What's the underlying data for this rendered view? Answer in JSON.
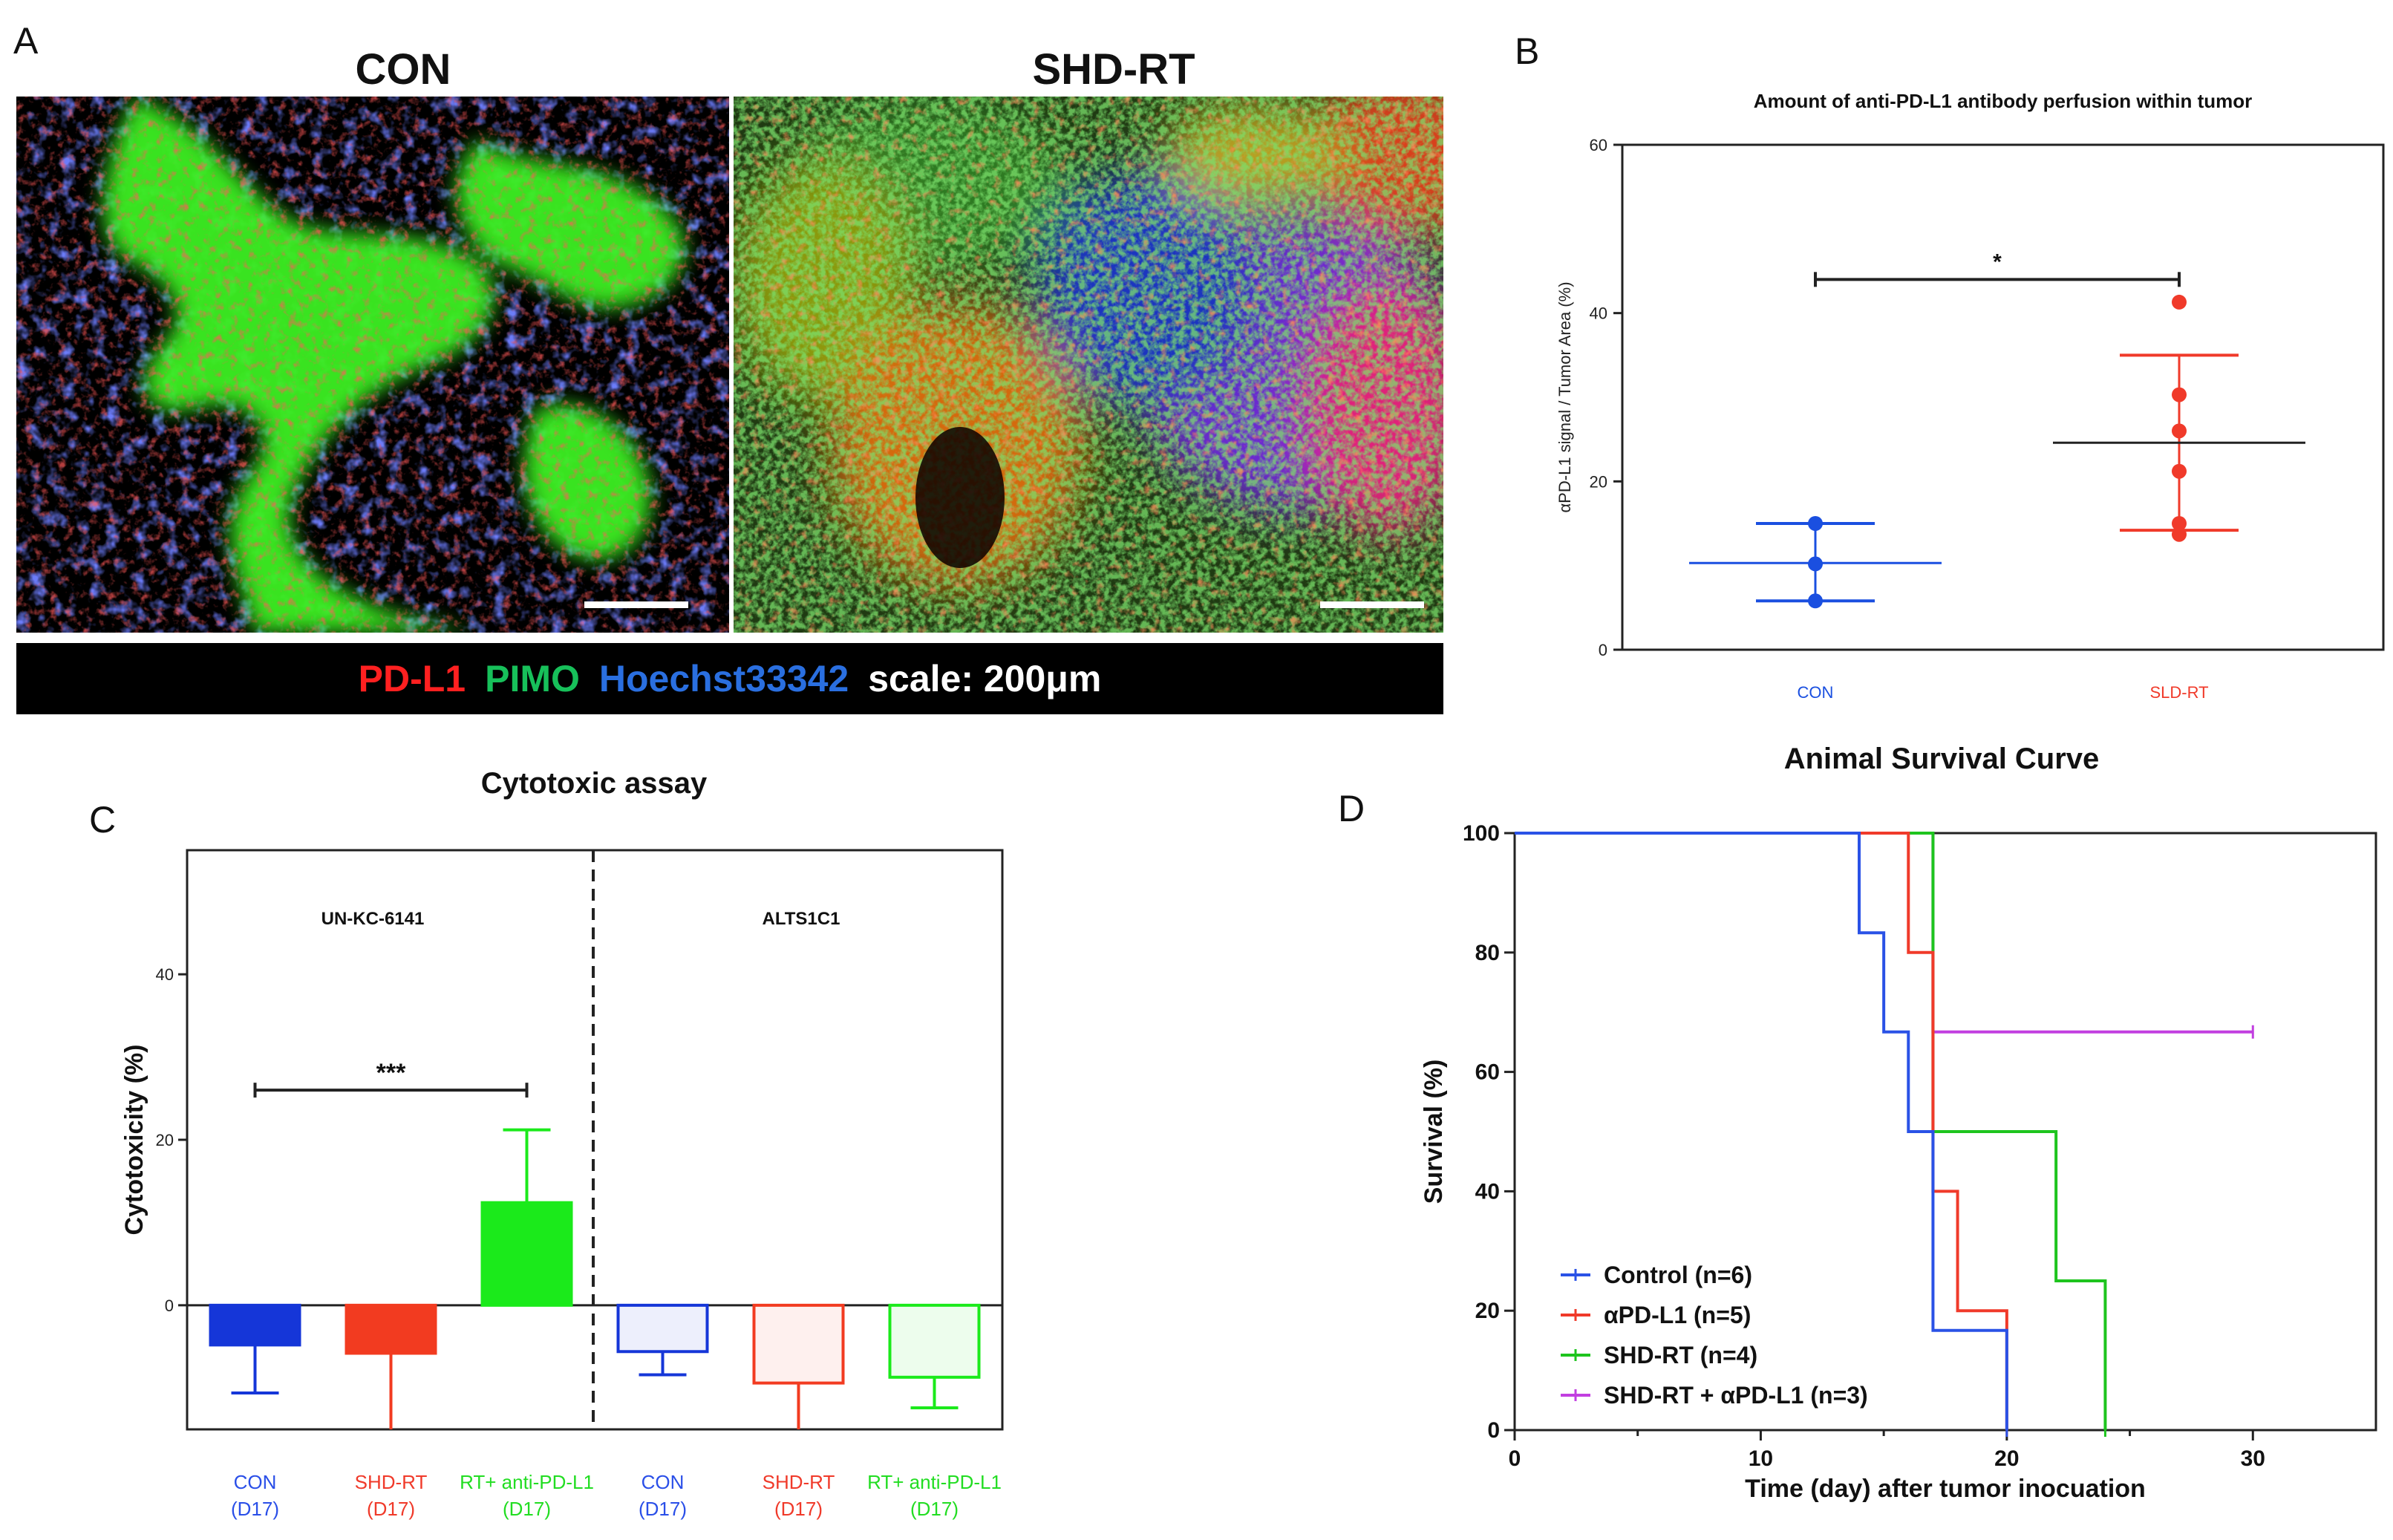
{
  "panels": {
    "A": {
      "letter": "A",
      "left_title": "CON",
      "right_title": "SHD-RT",
      "legend": [
        {
          "text": "PD-L1",
          "color": "#ff2020"
        },
        {
          "text": "PIMO",
          "color": "#17c05a"
        },
        {
          "text": "Hoechst33342",
          "color": "#2a6fe0"
        },
        {
          "text": "scale: 200μm",
          "color": "#ffffff"
        }
      ]
    },
    "B": {
      "letter": "B"
    },
    "C": {
      "letter": "C"
    },
    "D": {
      "letter": "D"
    }
  },
  "chart_data": [
    {
      "id": "B",
      "type": "scatter",
      "title": "Amount of anti-PD-L1 antibody perfusion within tumor",
      "ylabel": "αPD-L1 signal / Tumor Area (%)",
      "xlabel": "",
      "ylim": [
        0,
        60
      ],
      "yticks": [
        0,
        20,
        40,
        60
      ],
      "categories": [
        "CON",
        "SLD-RT"
      ],
      "colors": [
        "#1a4fe0",
        "#f03a2a"
      ],
      "series": [
        {
          "name": "CON",
          "points": [
            15.0,
            10.2,
            5.8
          ],
          "mean": 10.3,
          "sd_low": 5.8,
          "sd_high": 15.0
        },
        {
          "name": "SLD-RT",
          "points": [
            41.3,
            30.3,
            26.0,
            21.2,
            15.0,
            13.7
          ],
          "mean": 24.6,
          "sd_low": 14.2,
          "sd_high": 35.0
        }
      ],
      "significance": {
        "from": "CON",
        "to": "SLD-RT",
        "y": 44,
        "label": "*"
      }
    },
    {
      "id": "C",
      "type": "bar",
      "title": "Cytotoxic assay",
      "ylabel": "Cytotoxicity (%)",
      "ylim": [
        -15,
        55
      ],
      "yticks": [
        0,
        20,
        40
      ],
      "groups": [
        "UN-KC-6141",
        "ALTS1C1"
      ],
      "categories": [
        "CON\n(D17)",
        "SHD-RT\n(D17)",
        "RT+ anti-PD-L1\n(D17)",
        "CON\n(D17)",
        "SHD-RT\n(D17)",
        "RT+ anti-PD-L1\n(D17)"
      ],
      "values": [
        -4.8,
        -5.8,
        12.4,
        -5.6,
        -9.4,
        -8.7
      ],
      "errors": [
        5.8,
        9.2,
        8.8,
        2.8,
        5.6,
        3.7
      ],
      "colors": [
        "#1536d8",
        "#f23b20",
        "#1bea1b",
        "#1536d8",
        "#f23b20",
        "#1bea1b"
      ],
      "filled": [
        true,
        true,
        true,
        false,
        false,
        false
      ],
      "label_colors": [
        "#2a4fe8",
        "#f03a2a",
        "#22dd22",
        "#2a4fe8",
        "#f03a2a",
        "#22dd22"
      ],
      "significance": {
        "from": 0,
        "to": 2,
        "y": 26,
        "label": "***"
      }
    },
    {
      "id": "D",
      "type": "line",
      "title": "Animal Survival Curve",
      "xlabel": "Time (day) after tumor inocuation",
      "ylabel": "Survival (%)",
      "xlim": [
        0,
        35
      ],
      "ylim": [
        0,
        100
      ],
      "xticks": [
        0,
        10,
        20,
        30
      ],
      "yticks": [
        0,
        20,
        40,
        60,
        80,
        100
      ],
      "series": [
        {
          "name": "Control (n=6)",
          "color": "#2a52e6",
          "x": [
            0,
            14,
            14,
            15,
            15,
            16,
            16,
            17,
            17,
            20,
            20
          ],
          "y": [
            100,
            100,
            83.3,
            83.3,
            66.7,
            66.7,
            50,
            50,
            16.7,
            16.7,
            0
          ]
        },
        {
          "name": "αPD-L1 (n=5)",
          "color": "#f03a2a",
          "x": [
            0,
            16,
            16,
            17,
            17,
            18,
            18,
            20,
            20
          ],
          "y": [
            100,
            100,
            80,
            80,
            40,
            40,
            20,
            20,
            0
          ]
        },
        {
          "name": "SHD-RT (n=4)",
          "color": "#1ec41e",
          "x": [
            0,
            17,
            17,
            22,
            22,
            24,
            24
          ],
          "y": [
            100,
            100,
            50,
            50,
            25,
            25,
            0
          ]
        },
        {
          "name": "SHD-RT + αPD-L1 (n=3)",
          "color": "#c23fe0",
          "x": [
            0,
            17,
            17,
            30
          ],
          "y": [
            100,
            100,
            66.7,
            66.7
          ]
        }
      ]
    }
  ]
}
